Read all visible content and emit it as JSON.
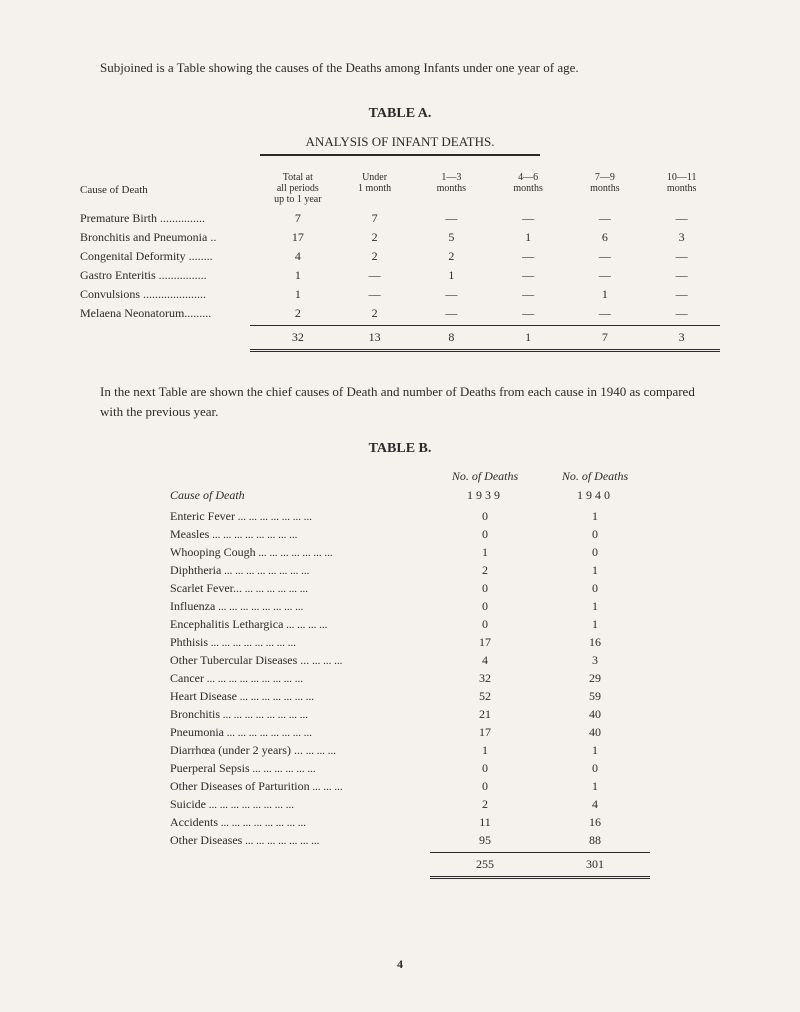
{
  "intro": "Subjoined is a Table showing the causes of the Deaths among Infants under one year of age.",
  "tableA": {
    "title": "TABLE A.",
    "subtitle": "ANALYSIS OF INFANT DEATHS.",
    "headers": {
      "cause": "Cause of Death",
      "total": "Total at\nall periods\nup to 1 year",
      "under1": "Under\n1 month",
      "m1_3": "1—3\nmonths",
      "m4_6": "4—6\nmonths",
      "m7_9": "7—9\nmonths",
      "m10_11": "10—11\nmonths"
    },
    "rows": [
      {
        "label": "Premature Birth ...............",
        "vals": [
          "7",
          "7",
          "—",
          "—",
          "—",
          "—"
        ]
      },
      {
        "label": "Bronchitis and Pneumonia ..",
        "vals": [
          "17",
          "2",
          "5",
          "1",
          "6",
          "3"
        ]
      },
      {
        "label": "Congenital Deformity ........",
        "vals": [
          "4",
          "2",
          "2",
          "—",
          "—",
          "—"
        ]
      },
      {
        "label": "Gastro Enteritis ................",
        "vals": [
          "1",
          "—",
          "1",
          "—",
          "—",
          "—"
        ]
      },
      {
        "label": "Convulsions .....................",
        "vals": [
          "1",
          "—",
          "—",
          "—",
          "1",
          "—"
        ]
      },
      {
        "label": "Melaena Neonatorum.........",
        "vals": [
          "2",
          "2",
          "—",
          "—",
          "—",
          "—"
        ]
      }
    ],
    "totals": [
      "32",
      "13",
      "8",
      "1",
      "7",
      "3"
    ]
  },
  "middleText": "In the next Table are shown the chief causes of Death and number of Deaths from each cause in 1940 as compared with the previous year.",
  "tableB": {
    "title": "TABLE B.",
    "headers": {
      "cause": "Cause of Death",
      "col1": "No. of Deaths",
      "col2": "No. of Deaths",
      "year1": "1939",
      "year2": "1940"
    },
    "rows": [
      {
        "label": "Enteric Fever",
        "v1": "0",
        "v2": "1"
      },
      {
        "label": "Measles",
        "v1": "0",
        "v2": "0"
      },
      {
        "label": "Whooping Cough",
        "v1": "1",
        "v2": "0"
      },
      {
        "label": "Diphtheria",
        "v1": "2",
        "v2": "1"
      },
      {
        "label": "Scarlet Fever...",
        "v1": "0",
        "v2": "0"
      },
      {
        "label": "Influenza",
        "v1": "0",
        "v2": "1"
      },
      {
        "label": "Encephalitis Lethargica",
        "v1": "0",
        "v2": "1"
      },
      {
        "label": "Phthisis",
        "v1": "17",
        "v2": "16"
      },
      {
        "label": "Other Tubercular Diseases ...",
        "v1": "4",
        "v2": "3"
      },
      {
        "label": "Cancer",
        "v1": "32",
        "v2": "29"
      },
      {
        "label": "Heart Disease",
        "v1": "52",
        "v2": "59"
      },
      {
        "label": "Bronchitis",
        "v1": "21",
        "v2": "40"
      },
      {
        "label": "Pneumonia",
        "v1": "17",
        "v2": "40"
      },
      {
        "label": "Diarrhœa (under 2 years) ...",
        "v1": "1",
        "v2": "1"
      },
      {
        "label": "Puerperal Sepsis",
        "v1": "0",
        "v2": "0"
      },
      {
        "label": "Other Diseases of Parturition",
        "v1": "0",
        "v2": "1"
      },
      {
        "label": "Suicide",
        "v1": "2",
        "v2": "4"
      },
      {
        "label": "Accidents",
        "v1": "11",
        "v2": "16"
      },
      {
        "label": "Other Diseases",
        "v1": "95",
        "v2": "88"
      }
    ],
    "totals": {
      "v1": "255",
      "v2": "301"
    }
  },
  "pageNumber": "4"
}
